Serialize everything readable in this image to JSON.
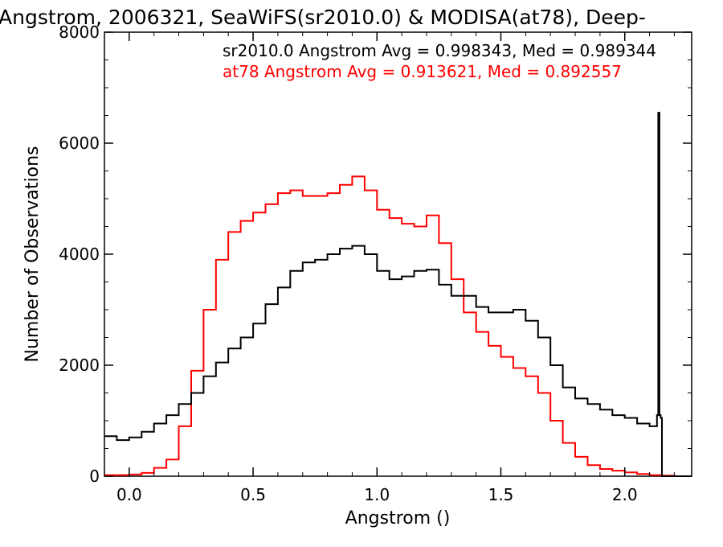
{
  "chart_data": {
    "type": "line",
    "title": "Angstrom, 2006321, SeaWiFS(sr2010.0) & MODISA(at78), Deep-",
    "xlabel": "Angstrom ()",
    "ylabel": "Number of Observations",
    "xlim": [
      -0.1,
      2.27
    ],
    "ylim": [
      0,
      8000
    ],
    "x_ticks": [
      0.0,
      0.5,
      1.0,
      1.5,
      2.0
    ],
    "x_tick_labels": [
      "0.0",
      "0.5",
      "1.0",
      "1.5",
      "2.0"
    ],
    "y_ticks": [
      0,
      2000,
      4000,
      6000,
      8000
    ],
    "y_tick_labels": [
      "0",
      "2000",
      "4000",
      "6000",
      "8000"
    ],
    "grid": false,
    "annotations": [
      {
        "text": "sr2010.0 Angstrom Avg = 0.998343, Med = 0.989344",
        "color": "#000000"
      },
      {
        "text": "at78 Angstrom Avg = 0.913621, Med = 0.892557",
        "color": "#ff0000"
      }
    ],
    "series": [
      {
        "color": "#000000",
        "x": [
          -0.1,
          -0.05,
          0.0,
          0.05,
          0.1,
          0.15,
          0.2,
          0.25,
          0.3,
          0.35,
          0.4,
          0.45,
          0.5,
          0.55,
          0.6,
          0.65,
          0.7,
          0.75,
          0.8,
          0.85,
          0.9,
          0.95,
          1.0,
          1.05,
          1.1,
          1.15,
          1.2,
          1.25,
          1.3,
          1.35,
          1.4,
          1.45,
          1.5,
          1.55,
          1.6,
          1.65,
          1.7,
          1.75,
          1.8,
          1.85,
          1.9,
          1.95,
          2.0,
          2.05,
          2.1,
          2.13,
          2.135,
          2.14,
          2.145,
          2.15,
          2.16,
          2.2,
          2.27
        ],
        "y": [
          720,
          650,
          700,
          800,
          950,
          1100,
          1300,
          1500,
          1800,
          2050,
          2300,
          2500,
          2750,
          3100,
          3400,
          3700,
          3850,
          3900,
          4000,
          4100,
          4150,
          4000,
          3700,
          3550,
          3600,
          3700,
          3720,
          3450,
          3250,
          3250,
          3050,
          2950,
          2950,
          3000,
          2800,
          2500,
          2000,
          1600,
          1400,
          1300,
          1200,
          1100,
          1050,
          950,
          900,
          1100,
          6550,
          1100,
          1050,
          0,
          0,
          0,
          0
        ]
      },
      {
        "color": "#ff0000",
        "x": [
          -0.1,
          -0.05,
          0.0,
          0.05,
          0.1,
          0.15,
          0.2,
          0.25,
          0.3,
          0.35,
          0.4,
          0.45,
          0.5,
          0.55,
          0.6,
          0.65,
          0.7,
          0.75,
          0.8,
          0.85,
          0.9,
          0.95,
          1.0,
          1.05,
          1.1,
          1.15,
          1.2,
          1.25,
          1.3,
          1.35,
          1.4,
          1.45,
          1.5,
          1.55,
          1.6,
          1.65,
          1.7,
          1.75,
          1.8,
          1.85,
          1.9,
          1.95,
          2.0,
          2.05,
          2.1,
          2.15,
          2.2,
          2.27
        ],
        "y": [
          20,
          20,
          30,
          60,
          150,
          300,
          900,
          1900,
          3000,
          3900,
          4400,
          4600,
          4750,
          4900,
          5100,
          5150,
          5050,
          5050,
          5100,
          5250,
          5400,
          5150,
          4800,
          4650,
          4550,
          4500,
          4700,
          4200,
          3550,
          2950,
          2600,
          2350,
          2150,
          1950,
          1800,
          1500,
          1000,
          600,
          350,
          200,
          130,
          100,
          70,
          40,
          20,
          10,
          0,
          0
        ]
      }
    ]
  }
}
